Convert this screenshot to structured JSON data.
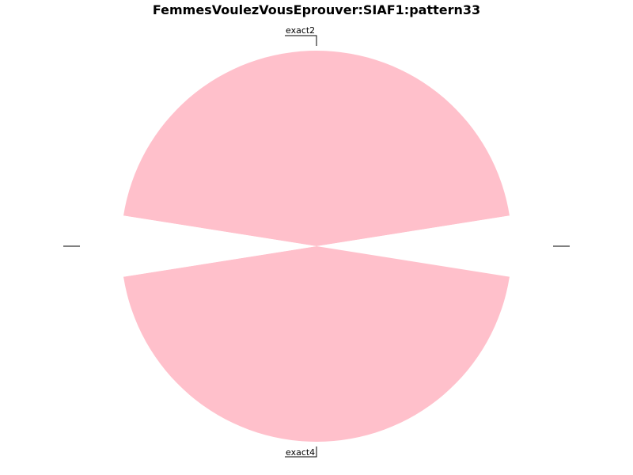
{
  "chart_data": {
    "type": "pie",
    "title": "FemmesVoulezVousEprouver:SIAF1:pattern33",
    "slices": [
      {
        "label": "exact2",
        "value": 0.45,
        "color": "#ffc0cb"
      },
      {
        "label": "",
        "value": 0.05,
        "color": "#ffffff"
      },
      {
        "label": "exact4",
        "value": 0.45,
        "color": "#ffc0cb"
      },
      {
        "label": "",
        "value": 0.05,
        "color": "#ffffff"
      }
    ]
  }
}
